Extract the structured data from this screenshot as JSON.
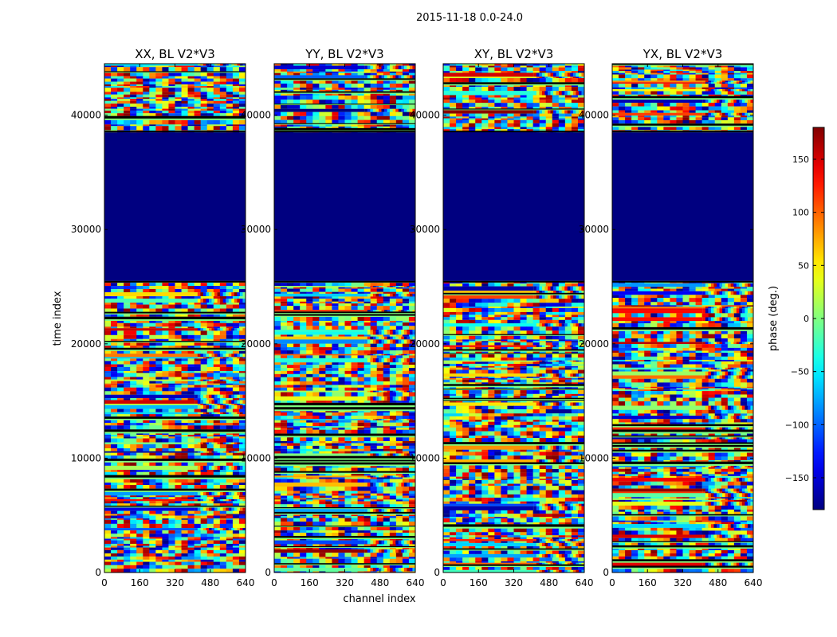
{
  "figure": {
    "suptitle": "2015-11-18 0.0-24.0"
  },
  "chart_data": {
    "type": "heatmap",
    "xlabel": "channel index",
    "ylabel": "time index",
    "xlim": [
      0,
      640
    ],
    "ylim": [
      0,
      44500
    ],
    "xticks": [
      0,
      160,
      320,
      480,
      640
    ],
    "yticks": [
      0,
      10000,
      20000,
      30000,
      40000
    ],
    "panels": [
      {
        "title": "XX, BL V2*V3",
        "pol": "XX",
        "seed": 11
      },
      {
        "title": "YY, BL V2*V3",
        "pol": "YY",
        "seed": 23
      },
      {
        "title": "XY, BL V2*V3",
        "pol": "XY",
        "seed": 37
      },
      {
        "title": "YX, BL V2*V3",
        "pol": "YX",
        "seed": 53
      }
    ],
    "flagged_time_range": [
      25500,
      38500
    ],
    "flagged_value": -180,
    "colorbar": {
      "label": "phase (deg.)",
      "vmin": -180,
      "vmax": 180,
      "ticks": [
        150,
        100,
        50,
        0,
        -50,
        -100,
        -150
      ],
      "colormap": "jet"
    }
  }
}
